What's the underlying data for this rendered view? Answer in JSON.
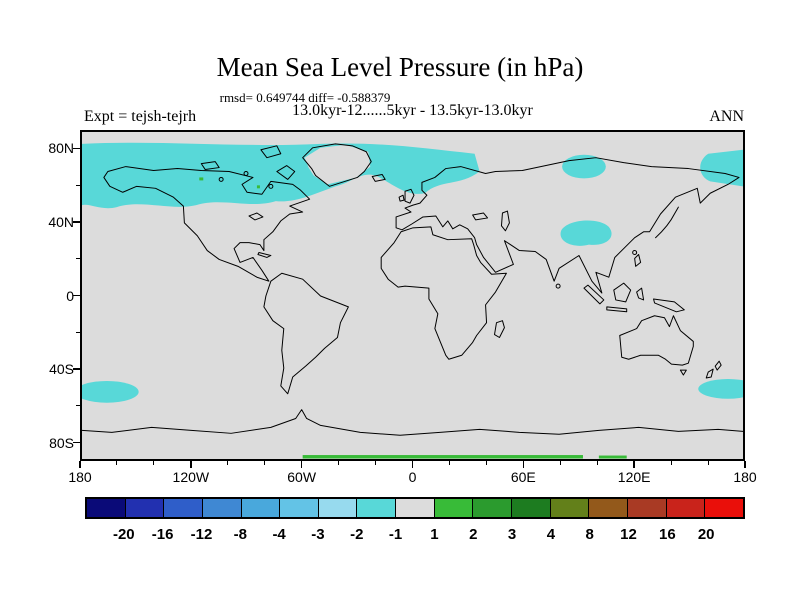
{
  "header": {
    "title": "Mean Sea Level Pressure (in hPa)",
    "stats_line": "rmsd= 0.649744 diff= -0.588379",
    "period_line": "13.0kyr-12......5kyr - 13.5kyr-13.0kyr",
    "expt_label": "Expt = tejsh-tejrh",
    "season_label": "ANN"
  },
  "axes": {
    "y_ticks": [
      "80N",
      "40N",
      "0",
      "40S",
      "80S"
    ],
    "x_ticks": [
      "180",
      "120W",
      "60W",
      "0",
      "60E",
      "120E",
      "180"
    ]
  },
  "colorbar": {
    "labels": [
      "-20",
      "-16",
      "-12",
      "-8",
      "-4",
      "-3",
      "-2",
      "-1",
      "1",
      "2",
      "3",
      "4",
      "8",
      "12",
      "16",
      "20"
    ],
    "colors": [
      "#0a0a78",
      "#2230b0",
      "#2f5ec9",
      "#3f88d3",
      "#49a8dc",
      "#63c3e6",
      "#97daee",
      "#58d8d8",
      "#dcdcdc",
      "#38bb38",
      "#2b9b2e",
      "#1d7c20",
      "#63801a",
      "#93591b",
      "#a93a24",
      "#c9231b",
      "#ea0f0a"
    ]
  },
  "colors": {
    "map_background": "#dcdcdc",
    "negative_anomaly_cyan": "#58d8d8",
    "positive_anomaly_green": "#38bb38",
    "coastline": "#000000"
  },
  "chart_data": {
    "type": "heatmap",
    "subtype": "filled_contour_world_map",
    "title": "Mean Sea Level Pressure (in hPa)",
    "units": "hPa",
    "stats": {
      "rmsd": 0.649744,
      "diff": -0.588379
    },
    "experiment": "tejsh-tejrh",
    "comparison": "13.0kyr-12......5kyr - 13.5kyr-13.0kyr",
    "season": "ANN",
    "projection": "equirectangular",
    "lon_range": [
      -180,
      180
    ],
    "lat_range": [
      -90,
      90
    ],
    "x_tick_lons": [
      -180,
      -120,
      -60,
      0,
      60,
      120,
      180
    ],
    "y_tick_lats": [
      80,
      40,
      0,
      -40,
      -80
    ],
    "contour_levels": [
      -20,
      -16,
      -12,
      -8,
      -4,
      -3,
      -2,
      -1,
      1,
      2,
      3,
      4,
      8,
      12,
      16,
      20
    ],
    "legend_position": "bottom",
    "background_value_range": [
      -1,
      1
    ],
    "anomaly_regions": [
      {
        "value_range": [
          -2,
          -1
        ],
        "description": "Broad high-latitude band ~55N-85N over Alaska, northern Canada, Hudson Bay, around Greenland, North Atlantic, Scandinavia and Barents region"
      },
      {
        "value_range": [
          -2,
          -1
        ],
        "description": "Small patch over eastern Siberia ~65N-75N, 135E-155E"
      },
      {
        "value_range": [
          -2,
          -1
        ],
        "description": "Patch at Bering/Chukchi region touching right map edge ~60N-80N"
      },
      {
        "value_range": [
          -2,
          -1
        ],
        "description": "Oval patch over central Asia ~40N-50N, 75E-95E"
      },
      {
        "value_range": [
          -2,
          -1
        ],
        "description": "Southern Ocean patch near 55S at far western edge (~180-150W)"
      },
      {
        "value_range": [
          -2,
          -1
        ],
        "description": "Southern Ocean patch near 55S at far eastern edge (~150E-180)"
      },
      {
        "value_range": [
          1,
          2
        ],
        "description": "Thin positive strip along the Antarctic coast near the bottom map edge, ~60W to 90E"
      }
    ]
  }
}
